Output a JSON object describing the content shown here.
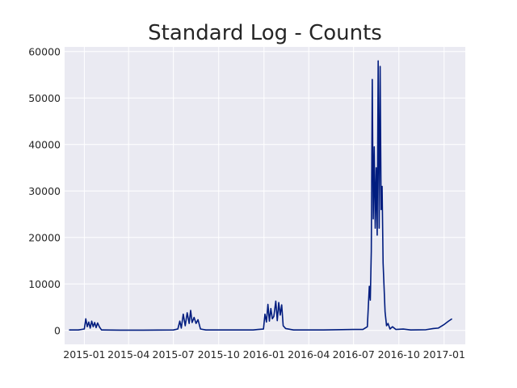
{
  "chart_data": {
    "type": "line",
    "title": "Standard Log - Counts",
    "xlabel": "",
    "ylabel": "",
    "x_axis": "date",
    "xlim": [
      "2014-11-22",
      "2017-02-13"
    ],
    "ylim": [
      -3000,
      61000
    ],
    "grid": true,
    "legend": "none",
    "x_ticks": [
      {
        "date": "2015-01-01",
        "label": "2015-01"
      },
      {
        "date": "2015-04-01",
        "label": "2015-04"
      },
      {
        "date": "2015-07-01",
        "label": "2015-07"
      },
      {
        "date": "2015-10-01",
        "label": "2015-10"
      },
      {
        "date": "2016-01-01",
        "label": "2016-01"
      },
      {
        "date": "2016-04-01",
        "label": "2016-04"
      },
      {
        "date": "2016-07-01",
        "label": "2016-07"
      },
      {
        "date": "2016-10-01",
        "label": "2016-10"
      },
      {
        "date": "2017-01-01",
        "label": "2017-01"
      }
    ],
    "y_ticks": [
      {
        "value": 0,
        "label": "0"
      },
      {
        "value": 10000,
        "label": "10000"
      },
      {
        "value": 20000,
        "label": "20000"
      },
      {
        "value": 30000,
        "label": "30000"
      },
      {
        "value": 40000,
        "label": "40000"
      },
      {
        "value": 50000,
        "label": "50000"
      },
      {
        "value": 60000,
        "label": "60000"
      }
    ],
    "colors": {
      "line": "#001c7f",
      "plot_background": "#eaeaf2",
      "grid": "#ffffff"
    },
    "series": [
      {
        "points": [
          [
            "2014-12-01",
            100
          ],
          [
            "2014-12-20",
            100
          ],
          [
            "2015-01-01",
            300
          ],
          [
            "2015-01-04",
            2500
          ],
          [
            "2015-01-07",
            800
          ],
          [
            "2015-01-10",
            1800
          ],
          [
            "2015-01-13",
            500
          ],
          [
            "2015-01-16",
            2000
          ],
          [
            "2015-01-19",
            800
          ],
          [
            "2015-01-22",
            1700
          ],
          [
            "2015-01-25",
            600
          ],
          [
            "2015-01-28",
            1600
          ],
          [
            "2015-02-01",
            700
          ],
          [
            "2015-02-05",
            100
          ],
          [
            "2015-03-15",
            50
          ],
          [
            "2015-05-01",
            50
          ],
          [
            "2015-07-01",
            100
          ],
          [
            "2015-07-10",
            300
          ],
          [
            "2015-07-14",
            2000
          ],
          [
            "2015-07-17",
            500
          ],
          [
            "2015-07-21",
            3500
          ],
          [
            "2015-07-25",
            1000
          ],
          [
            "2015-07-29",
            3800
          ],
          [
            "2015-08-02",
            1500
          ],
          [
            "2015-08-05",
            4300
          ],
          [
            "2015-08-08",
            1700
          ],
          [
            "2015-08-12",
            2800
          ],
          [
            "2015-08-16",
            1500
          ],
          [
            "2015-08-20",
            2300
          ],
          [
            "2015-08-25",
            300
          ],
          [
            "2015-09-05",
            100
          ],
          [
            "2015-10-01",
            100
          ],
          [
            "2015-12-10",
            100
          ],
          [
            "2015-12-20",
            200
          ],
          [
            "2015-12-31",
            300
          ],
          [
            "2016-01-03",
            3500
          ],
          [
            "2016-01-06",
            1800
          ],
          [
            "2016-01-09",
            5600
          ],
          [
            "2016-01-12",
            2000
          ],
          [
            "2016-01-15",
            4700
          ],
          [
            "2016-01-18",
            2500
          ],
          [
            "2016-01-21",
            3000
          ],
          [
            "2016-01-25",
            6300
          ],
          [
            "2016-01-28",
            2100
          ],
          [
            "2016-01-31",
            6000
          ],
          [
            "2016-02-03",
            3300
          ],
          [
            "2016-02-06",
            5500
          ],
          [
            "2016-02-09",
            1000
          ],
          [
            "2016-02-14",
            400
          ],
          [
            "2016-03-01",
            100
          ],
          [
            "2016-05-01",
            100
          ],
          [
            "2016-07-01",
            200
          ],
          [
            "2016-07-20",
            200
          ],
          [
            "2016-07-29",
            800
          ],
          [
            "2016-08-02",
            9500
          ],
          [
            "2016-08-04",
            6500
          ],
          [
            "2016-08-06",
            17000
          ],
          [
            "2016-08-08",
            54000
          ],
          [
            "2016-08-10",
            24000
          ],
          [
            "2016-08-12",
            39500
          ],
          [
            "2016-08-14",
            22000
          ],
          [
            "2016-08-16",
            35000
          ],
          [
            "2016-08-18",
            20500
          ],
          [
            "2016-08-20",
            58000
          ],
          [
            "2016-08-22",
            22000
          ],
          [
            "2016-08-24",
            56800
          ],
          [
            "2016-08-26",
            26000
          ],
          [
            "2016-08-28",
            31000
          ],
          [
            "2016-08-30",
            14500
          ],
          [
            "2016-09-03",
            4000
          ],
          [
            "2016-09-06",
            1000
          ],
          [
            "2016-09-09",
            1500
          ],
          [
            "2016-09-13",
            300
          ],
          [
            "2016-09-18",
            800
          ],
          [
            "2016-09-25",
            200
          ],
          [
            "2016-10-10",
            300
          ],
          [
            "2016-10-25",
            100
          ],
          [
            "2016-11-25",
            150
          ],
          [
            "2016-12-10",
            400
          ],
          [
            "2016-12-20",
            500
          ],
          [
            "2016-12-31",
            1200
          ],
          [
            "2017-01-10",
            2000
          ],
          [
            "2017-01-17",
            2500
          ]
        ]
      }
    ]
  }
}
